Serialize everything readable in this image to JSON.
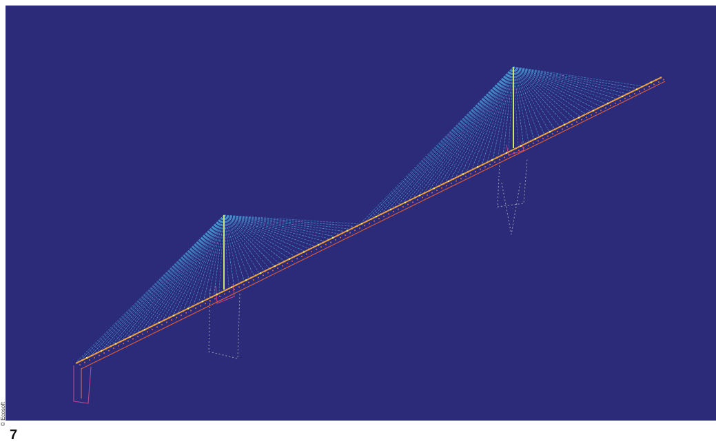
{
  "figure": {
    "number": "7",
    "credit": "© Ecosoft"
  }
}
